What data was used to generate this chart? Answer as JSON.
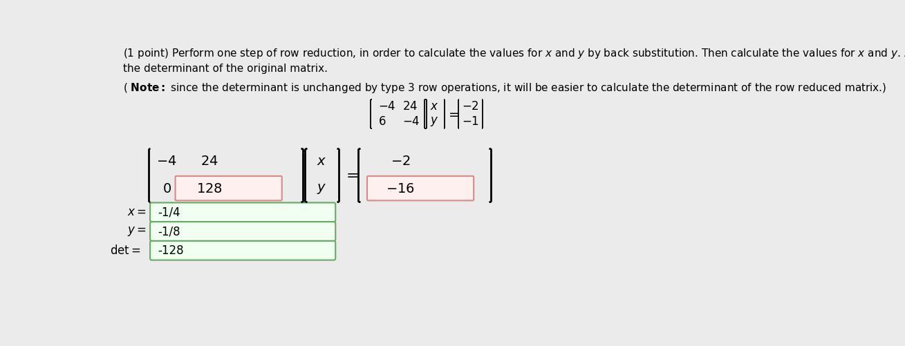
{
  "background_color": "#ebebeb",
  "title_line1": "(1 point) Perform one step of row reduction, in order to calculate the values for $x$ and $y$ by back substitution. Then calculate the values for $x$ and $y$. Also calculate",
  "title_line2": "the determinant of the original matrix.",
  "note_text": "( Note: since the determinant is unchanged by type 3 row operations, it will be easier to calculate the determinant of the row reduced matrix.)",
  "small_matrix_A": [
    [
      "-4",
      "24"
    ],
    [
      "6",
      "-4"
    ]
  ],
  "small_vec_x": [
    "x",
    "y"
  ],
  "small_vec_b": [
    "-2",
    "-1"
  ],
  "big_matrix_row1": [
    "-4",
    "24"
  ],
  "big_matrix_row2": [
    "0",
    "128"
  ],
  "big_vec_x": [
    "x",
    "y"
  ],
  "big_vec_b": [
    "-2",
    "-16"
  ],
  "x_val": "-1/4",
  "y_val": "-1/8",
  "det_val": "-128",
  "red_box_fill": "#fff0f0",
  "red_box_edge": "#dd8888",
  "green_box_fill": "#f0fff0",
  "green_box_edge": "#66aa66",
  "font_size_text": 11,
  "font_size_note": 11,
  "font_size_small_matrix": 12,
  "font_size_big_matrix": 14,
  "font_size_answer": 12
}
